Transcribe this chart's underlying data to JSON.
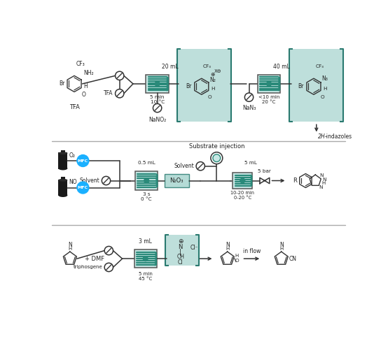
{
  "bg_color": "#ffffff",
  "teal_bg": "#a8d5cf",
  "blue_mfc": "#1ab0ff",
  "coil_face": "#c8e8e5",
  "coil_line": "#2a8a7a",
  "sep_color": "#bbbbbb",
  "text_color": "#222222",
  "row1": {
    "vol1": "20 mL",
    "time1": "5 min\n10 °C",
    "reagent1": "NaNO₂",
    "vol2": "40 mL",
    "time2": "<10 min\n20 °C",
    "reagent2": "NaN₃",
    "product": "2H-indazoles"
  },
  "row2": {
    "title": "Substrate injection",
    "solvent": "Solvent",
    "vol1": "0.5 mL",
    "time1": "3 s\n0 °C",
    "n2o3": "N₂O₃",
    "vol2": "5 mL",
    "time2": "10-20 min\n0-20 °C",
    "pressure": "5 bar",
    "o2": "O₂",
    "no": "NO"
  },
  "row3": {
    "dmf": "+ DMF",
    "triphosgene": "triphosgene",
    "vol": "3 mL",
    "time": "5 min\n45 °C",
    "in_flow": "in flow"
  }
}
